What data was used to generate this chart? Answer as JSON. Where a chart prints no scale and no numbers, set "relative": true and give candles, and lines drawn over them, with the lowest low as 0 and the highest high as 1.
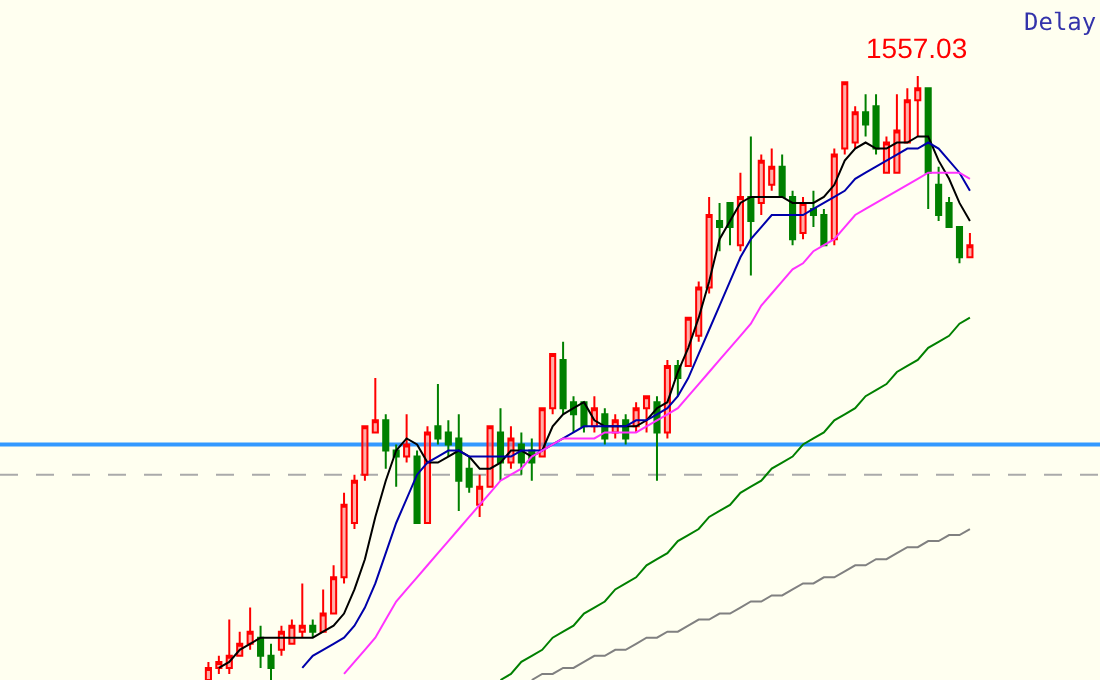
{
  "chart_data": {
    "type": "candlestick",
    "relative": true,
    "categories": [
      null,
      null,
      null,
      null,
      null,
      null,
      null,
      null,
      null,
      null,
      null,
      null,
      null,
      null,
      null,
      null,
      null,
      null,
      null,
      null,
      null,
      null,
      null,
      null,
      null,
      null,
      null,
      null,
      null,
      null,
      null,
      null,
      null,
      null,
      null,
      null,
      null,
      null,
      null,
      null,
      null,
      null,
      null,
      null,
      null,
      null,
      null,
      null,
      null,
      null,
      null,
      null,
      null,
      null,
      null,
      null,
      null,
      null,
      null,
      null,
      null,
      null,
      null,
      null,
      null,
      null,
      null,
      null,
      null,
      null,
      null,
      null,
      null,
      null
    ],
    "colors": [
      "#ff0000",
      "#ff0000",
      "#ff0000",
      "#ff0000",
      "#ff0000",
      "#008000",
      "#008000",
      "#ff0000",
      "#ff0000",
      "#ff0000",
      "#008000",
      "#ff0000",
      "#ff0000",
      "#ff0000",
      "#ff0000",
      "#ff0000",
      "#ff0000",
      "#008000",
      "#008000",
      "#ff0000",
      "#008000",
      "#ff0000",
      "#008000",
      "#008000",
      "#008000",
      "#008000",
      "#ff0000",
      "#ff0000",
      "#008000",
      "#ff0000",
      "#008000",
      "#008000",
      "#ff0000",
      "#ff0000",
      "#008000",
      "#008000",
      "#008000",
      "#ff0000",
      "#008000",
      "#ff0000",
      "#008000",
      "#ff0000",
      "#ff0000",
      "#008000",
      "#ff0000",
      "#008000",
      "#ff0000",
      "#ff0000",
      "#ff0000",
      "#008000",
      "#008000",
      "#ff0000",
      "#008000",
      "#ff0000",
      "#ff0000",
      "#008000",
      "#008000",
      "#ff0000",
      "#008000",
      "#008000",
      "#ff0000",
      "#ff0000",
      "#ff0000",
      "#008000",
      "#008000",
      "#ff0000",
      "#ff0000",
      "#ff0000",
      "#ff0000",
      "#008000",
      "#008000",
      "#008000",
      "#008000",
      "#ff0000"
    ],
    "ohlc": [
      [
        0,
        0.03,
        0,
        0.02
      ],
      [
        0.02,
        0.04,
        0.01,
        0.03
      ],
      [
        0.02,
        0.1,
        0.01,
        0.04
      ],
      [
        0.04,
        0.08,
        0.04,
        0.06
      ],
      [
        0.06,
        0.12,
        0.05,
        0.08
      ],
      [
        0.07,
        0.09,
        0.02,
        0.04
      ],
      [
        0.04,
        0.06,
        0,
        0.02
      ],
      [
        0.05,
        0.09,
        0.04,
        0.08
      ],
      [
        0.06,
        0.1,
        0.06,
        0.09
      ],
      [
        0.08,
        0.16,
        0.07,
        0.09
      ],
      [
        0.09,
        0.1,
        0.07,
        0.08
      ],
      [
        0.08,
        0.15,
        0.08,
        0.11
      ],
      [
        0.11,
        0.19,
        0.11,
        0.17
      ],
      [
        0.17,
        0.31,
        0.16,
        0.29
      ],
      [
        0.26,
        0.34,
        0.25,
        0.33
      ],
      [
        0.34,
        0.42,
        0.33,
        0.42
      ],
      [
        0.41,
        0.5,
        0.41,
        0.43
      ],
      [
        0.43,
        0.44,
        0.35,
        0.38
      ],
      [
        0.38,
        0.39,
        0.32,
        0.37
      ],
      [
        0.37,
        0.44,
        0.36,
        0.39
      ],
      [
        0.37,
        0.38,
        0.26,
        0.26
      ],
      [
        0.26,
        0.42,
        0.26,
        0.41
      ],
      [
        0.42,
        0.49,
        0.39,
        0.4
      ],
      [
        0.41,
        0.43,
        0.37,
        0.39
      ],
      [
        0.4,
        0.44,
        0.28,
        0.33
      ],
      [
        0.35,
        0.37,
        0.31,
        0.32
      ],
      [
        0.29,
        0.34,
        0.27,
        0.32
      ],
      [
        0.32,
        0.42,
        0.32,
        0.42
      ],
      [
        0.41,
        0.45,
        0.33,
        0.36
      ],
      [
        0.36,
        0.42,
        0.35,
        0.4
      ],
      [
        0.39,
        0.41,
        0.34,
        0.36
      ],
      [
        0.38,
        0.4,
        0.33,
        0.36
      ],
      [
        0.37,
        0.45,
        0.37,
        0.45
      ],
      [
        0.45,
        0.54,
        0.44,
        0.54
      ],
      [
        0.53,
        0.56,
        0.44,
        0.45
      ],
      [
        0.46,
        0.47,
        0.41,
        0.44
      ],
      [
        0.46,
        0.46,
        0.41,
        0.42
      ],
      [
        0.42,
        0.47,
        0.41,
        0.45
      ],
      [
        0.44,
        0.45,
        0.39,
        0.4
      ],
      [
        0.41,
        0.44,
        0.4,
        0.43
      ],
      [
        0.43,
        0.44,
        0.39,
        0.4
      ],
      [
        0.42,
        0.46,
        0.41,
        0.45
      ],
      [
        0.45,
        0.47,
        0.41,
        0.47
      ],
      [
        0.46,
        0.47,
        0.33,
        0.41
      ],
      [
        0.41,
        0.53,
        0.4,
        0.52
      ],
      [
        0.52,
        0.53,
        0.47,
        0.5
      ],
      [
        0.52,
        0.6,
        0.52,
        0.6
      ],
      [
        0.57,
        0.66,
        0.56,
        0.65
      ],
      [
        0.65,
        0.8,
        0.64,
        0.77
      ],
      [
        0.76,
        0.79,
        0.71,
        0.75
      ],
      [
        0.79,
        0.79,
        0.72,
        0.75
      ],
      [
        0.72,
        0.84,
        0.71,
        0.8
      ],
      [
        0.8,
        0.9,
        0.67,
        0.76
      ],
      [
        0.79,
        0.87,
        0.77,
        0.86
      ],
      [
        0.82,
        0.88,
        0.81,
        0.85
      ],
      [
        0.85,
        0.87,
        0.8,
        0.8
      ],
      [
        0.8,
        0.81,
        0.72,
        0.73
      ],
      [
        0.74,
        0.8,
        0.73,
        0.79
      ],
      [
        0.78,
        0.81,
        0.75,
        0.77
      ],
      [
        0.77,
        0.78,
        0.72,
        0.72
      ],
      [
        0.73,
        0.88,
        0.72,
        0.87
      ],
      [
        0.88,
        0.99,
        0.87,
        0.99
      ],
      [
        0.89,
        0.95,
        0.88,
        0.94
      ],
      [
        0.94,
        0.97,
        0.9,
        0.92
      ],
      [
        0.95,
        0.97,
        0.87,
        0.88
      ],
      [
        0.84,
        0.9,
        0.84,
        0.89
      ],
      [
        0.84,
        0.97,
        0.84,
        0.91
      ],
      [
        0.89,
        0.98,
        0.89,
        0.96
      ],
      [
        0.96,
        1,
        0.9,
        0.98
      ],
      [
        0.98,
        0.98,
        0.78,
        0.84
      ],
      [
        0.82,
        0.85,
        0.76,
        0.77
      ],
      [
        0.79,
        0.8,
        0.75,
        0.75
      ],
      [
        0.75,
        0.75,
        0.69,
        0.7
      ],
      [
        0.7,
        0.74,
        0.7,
        0.72
      ]
    ],
    "series": [
      {
        "type": "line",
        "color": "#000000",
        "values": [
          null,
          0.02,
          0.03,
          0.05,
          0.06,
          0.07,
          0.07,
          0.07,
          0.07,
          0.07,
          0.07,
          0.08,
          0.09,
          0.11,
          0.15,
          0.2,
          0.27,
          0.33,
          0.38,
          0.4,
          0.39,
          0.36,
          0.36,
          0.37,
          0.38,
          0.37,
          0.35,
          0.35,
          0.36,
          0.38,
          0.38,
          0.37,
          0.38,
          0.42,
          0.44,
          0.45,
          0.46,
          0.43,
          0.42,
          0.42,
          0.42,
          0.42,
          0.43,
          0.45,
          0.46,
          0.51,
          0.55,
          0.6,
          0.66,
          0.73,
          0.76,
          0.79,
          0.8,
          0.8,
          0.8,
          0.8,
          0.79,
          0.79,
          0.79,
          0.8,
          0.82,
          0.86,
          0.88,
          0.89,
          0.88,
          0.88,
          0.89,
          0.89,
          0.9,
          0.9,
          0.86,
          0.83,
          0.79,
          0.76
        ]
      },
      {
        "type": "line",
        "color": "#0000aa",
        "values": [
          null,
          null,
          null,
          null,
          null,
          null,
          null,
          null,
          null,
          0.02,
          0.04,
          0.05,
          0.06,
          0.07,
          0.09,
          0.12,
          0.16,
          0.21,
          0.26,
          0.3,
          0.34,
          0.36,
          0.37,
          0.38,
          0.38,
          0.37,
          0.37,
          0.37,
          0.37,
          0.37,
          0.38,
          0.38,
          0.38,
          0.39,
          0.4,
          0.41,
          0.42,
          0.42,
          0.42,
          0.42,
          0.42,
          0.43,
          0.43,
          0.44,
          0.45,
          0.47,
          0.5,
          0.54,
          0.58,
          0.62,
          0.66,
          0.7,
          0.73,
          0.75,
          0.77,
          0.77,
          0.77,
          0.77,
          0.78,
          0.79,
          0.8,
          0.81,
          0.83,
          0.84,
          0.85,
          0.86,
          0.87,
          0.88,
          0.88,
          0.89,
          0.88,
          0.86,
          0.84,
          0.81
        ]
      },
      {
        "type": "line",
        "color": "#ff33ff",
        "values": [
          null,
          null,
          null,
          null,
          null,
          null,
          null,
          null,
          null,
          null,
          null,
          null,
          null,
          0.01,
          0.03,
          0.05,
          0.07,
          0.1,
          0.13,
          0.15,
          0.17,
          0.19,
          0.21,
          0.23,
          0.25,
          0.27,
          0.29,
          0.31,
          0.33,
          0.34,
          0.35,
          0.37,
          0.38,
          0.39,
          0.4,
          0.4,
          0.4,
          0.4,
          0.41,
          0.41,
          0.41,
          0.41,
          0.42,
          0.43,
          0.44,
          0.45,
          0.47,
          0.49,
          0.51,
          0.53,
          0.55,
          0.57,
          0.59,
          0.62,
          0.64,
          0.66,
          0.68,
          0.69,
          0.71,
          0.72,
          0.73,
          0.75,
          0.77,
          0.78,
          0.79,
          0.8,
          0.81,
          0.82,
          0.83,
          0.84,
          0.84,
          0.84,
          0.84,
          0.83
        ]
      },
      {
        "type": "line",
        "color": "#008000",
        "values": [
          null,
          null,
          null,
          null,
          null,
          null,
          null,
          null,
          null,
          null,
          null,
          null,
          null,
          null,
          null,
          null,
          null,
          null,
          null,
          null,
          null,
          null,
          null,
          null,
          null,
          null,
          null,
          null,
          0.0,
          0.01,
          0.03,
          0.04,
          0.05,
          0.07,
          0.08,
          0.09,
          0.11,
          0.12,
          0.13,
          0.15,
          0.16,
          0.17,
          0.19,
          0.2,
          0.21,
          0.23,
          0.24,
          0.25,
          0.27,
          0.28,
          0.29,
          0.31,
          0.32,
          0.33,
          0.35,
          0.36,
          0.37,
          0.39,
          0.4,
          0.41,
          0.43,
          0.44,
          0.45,
          0.47,
          0.48,
          0.49,
          0.51,
          0.52,
          0.53,
          0.55,
          0.56,
          0.57,
          0.59,
          0.6
        ]
      },
      {
        "type": "line",
        "color": "#808080",
        "values": [
          null,
          null,
          null,
          null,
          null,
          null,
          null,
          null,
          null,
          null,
          null,
          null,
          null,
          null,
          null,
          null,
          null,
          null,
          null,
          null,
          null,
          null,
          null,
          null,
          null,
          null,
          null,
          null,
          null,
          null,
          null,
          0.0,
          0.01,
          0.01,
          0.02,
          0.02,
          0.03,
          0.04,
          0.04,
          0.05,
          0.05,
          0.06,
          0.07,
          0.07,
          0.08,
          0.08,
          0.09,
          0.1,
          0.1,
          0.11,
          0.11,
          0.12,
          0.13,
          0.13,
          0.14,
          0.14,
          0.15,
          0.16,
          0.16,
          0.17,
          0.17,
          0.18,
          0.19,
          0.19,
          0.2,
          0.2,
          0.21,
          0.22,
          0.22,
          0.23,
          0.23,
          0.24,
          0.24,
          0.25
        ]
      }
    ],
    "ref_lines": [
      {
        "axis": "y",
        "value": 0.39,
        "color": "#3399ff",
        "line_style": "solid"
      },
      {
        "axis": "y",
        "value": 0.34,
        "color": "#aaaaaa",
        "line_style": "dashed"
      }
    ],
    "annotations": [
      {
        "text": "1557.03",
        "y": 1
      },
      "Delay"
    ]
  }
}
